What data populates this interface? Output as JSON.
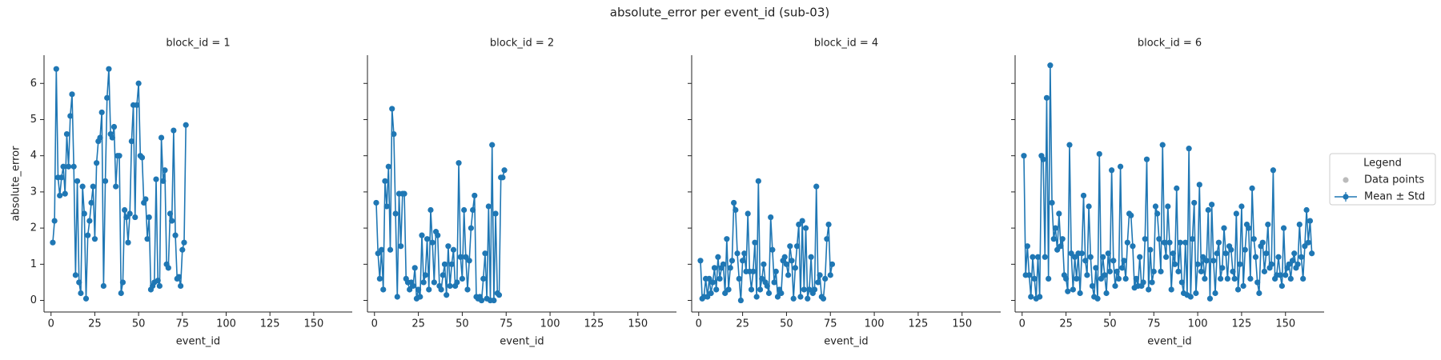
{
  "title": "absolute_error per event_id (sub-03)",
  "legend": {
    "title": "Legend",
    "entries": [
      {
        "name": "Data points",
        "color": "#bbbbbb"
      },
      {
        "name": "Mean ± Std",
        "color": "#1f77b4"
      }
    ]
  },
  "chart_data": [
    {
      "type": "line",
      "title": "block_id = 1",
      "xlabel": "event_id",
      "ylabel": "absolute_error",
      "xlim": [
        -4,
        172
      ],
      "ylim": [
        -0.32,
        6.78
      ],
      "xticks": [
        0,
        25,
        50,
        75,
        100,
        125,
        150
      ],
      "yticks": [
        0,
        1,
        2,
        3,
        4,
        5,
        6
      ],
      "x": [
        1,
        2,
        3,
        4,
        5,
        6,
        7,
        8,
        9,
        10,
        11,
        12,
        13,
        14,
        15,
        16,
        17,
        18,
        19,
        20,
        21,
        22,
        23,
        24,
        25,
        26,
        27,
        28,
        29,
        30,
        31,
        32,
        33,
        34,
        35,
        36,
        37,
        38,
        39,
        40,
        41,
        42,
        43,
        44,
        45,
        46,
        47,
        48,
        49,
        50,
        51,
        52,
        53,
        54,
        55,
        56,
        57,
        58,
        59,
        60,
        61,
        62,
        63,
        64,
        65,
        66,
        67,
        68,
        69,
        70,
        71,
        72,
        73,
        74,
        75,
        76,
        77
      ],
      "series": [
        {
          "color": "#1f77b4",
          "values": [
            1.6,
            2.2,
            6.4,
            3.4,
            2.9,
            3.4,
            3.7,
            2.95,
            4.6,
            3.7,
            5.1,
            5.7,
            3.7,
            0.7,
            3.3,
            0.5,
            0.2,
            3.15,
            2.4,
            0.05,
            1.8,
            2.2,
            2.7,
            3.15,
            1.7,
            3.8,
            4.4,
            4.5,
            5.2,
            0.4,
            3.3,
            5.6,
            6.4,
            4.6,
            4.5,
            4.8,
            3.15,
            4.0,
            4.0,
            0.2,
            0.5,
            2.5,
            2.3,
            1.6,
            2.4,
            4.4,
            5.4,
            2.3,
            5.4,
            6.0,
            4.0,
            3.95,
            2.7,
            2.8,
            1.7,
            2.3,
            0.3,
            0.4,
            0.5,
            3.35,
            0.55,
            0.4,
            4.5,
            3.3,
            3.6,
            1.0,
            0.9,
            2.4,
            2.2,
            4.7,
            1.8,
            0.6,
            0.65,
            0.4,
            1.4,
            1.6,
            4.85
          ]
        }
      ]
    },
    {
      "type": "line",
      "title": "block_id = 2",
      "xlabel": "event_id",
      "xlim": [
        -4,
        172
      ],
      "ylim": [
        -0.32,
        6.78
      ],
      "xticks": [
        0,
        25,
        50,
        75,
        100,
        125,
        150
      ],
      "yticks": [
        0,
        1,
        2,
        3,
        4,
        5,
        6
      ],
      "x": [
        1,
        2,
        3,
        4,
        5,
        6,
        7,
        8,
        9,
        10,
        11,
        12,
        13,
        14,
        15,
        16,
        17,
        18,
        19,
        20,
        21,
        22,
        23,
        24,
        25,
        26,
        27,
        28,
        29,
        30,
        31,
        32,
        33,
        34,
        35,
        36,
        37,
        38,
        39,
        40,
        41,
        42,
        43,
        44,
        45,
        46,
        47,
        48,
        49,
        50,
        51,
        52,
        53,
        54,
        55,
        56,
        57,
        58,
        59,
        60,
        61,
        62,
        63,
        64,
        65,
        66,
        67,
        68,
        69,
        70,
        71,
        72,
        73,
        74
      ],
      "series": [
        {
          "color": "#1f77b4",
          "values": [
            2.7,
            1.3,
            0.6,
            1.4,
            0.3,
            3.3,
            2.6,
            3.7,
            1.4,
            5.3,
            4.6,
            2.4,
            0.1,
            2.95,
            1.5,
            2.95,
            2.95,
            0.6,
            0.5,
            0.3,
            0.5,
            0.4,
            0.9,
            0.05,
            0.3,
            0.1,
            1.8,
            0.5,
            0.7,
            1.7,
            0.3,
            2.5,
            1.6,
            0.5,
            1.9,
            1.8,
            0.4,
            0.3,
            0.7,
            1.0,
            0.15,
            1.5,
            0.4,
            1.0,
            1.4,
            0.4,
            0.5,
            3.8,
            1.2,
            0.6,
            2.5,
            1.2,
            0.3,
            1.1,
            2.0,
            2.5,
            2.9,
            0.1,
            0.05,
            0.1,
            0.0,
            0.6,
            1.3,
            0.05,
            2.6,
            0.0,
            4.3,
            0.0,
            2.4,
            0.2,
            0.15,
            3.4,
            3.4,
            3.6
          ]
        }
      ]
    },
    {
      "type": "line",
      "title": "block_id = 4",
      "xlabel": "event_id",
      "xlim": [
        -4,
        172
      ],
      "ylim": [
        -0.32,
        6.78
      ],
      "xticks": [
        0,
        25,
        50,
        75,
        100,
        125,
        150
      ],
      "yticks": [
        0,
        1,
        2,
        3,
        4,
        5,
        6
      ],
      "x": [
        1,
        2,
        3,
        4,
        5,
        6,
        7,
        8,
        9,
        10,
        11,
        12,
        13,
        14,
        15,
        16,
        17,
        18,
        19,
        20,
        21,
        22,
        23,
        24,
        25,
        26,
        27,
        28,
        29,
        30,
        31,
        32,
        33,
        34,
        35,
        36,
        37,
        38,
        39,
        40,
        41,
        42,
        43,
        44,
        45,
        46,
        47,
        48,
        49,
        50,
        51,
        52,
        53,
        54,
        55,
        56,
        57,
        58,
        59,
        60,
        61,
        62,
        63,
        64,
        65,
        66,
        67,
        68,
        69,
        70,
        71,
        72,
        73,
        74,
        75,
        76
      ],
      "series": [
        {
          "color": "#1f77b4",
          "values": [
            1.1,
            0.05,
            0.1,
            0.6,
            0.1,
            0.6,
            0.2,
            0.5,
            0.9,
            0.3,
            1.2,
            0.6,
            0.9,
            1.0,
            0.2,
            1.7,
            0.3,
            0.9,
            1.1,
            2.7,
            2.5,
            1.3,
            0.6,
            0.0,
            1.1,
            1.3,
            0.8,
            2.4,
            0.8,
            0.3,
            0.8,
            1.6,
            0.1,
            3.3,
            0.3,
            0.6,
            1.0,
            0.5,
            0.4,
            0.2,
            2.3,
            1.4,
            0.5,
            0.8,
            0.1,
            0.3,
            0.2,
            1.1,
            1.2,
            1.0,
            0.7,
            1.5,
            1.1,
            0.05,
            0.9,
            1.5,
            2.1,
            0.1,
            2.2,
            0.3,
            2.0,
            0.05,
            0.3,
            1.2,
            0.2,
            0.3,
            3.15,
            0.5,
            0.7,
            0.1,
            0.05,
            0.6,
            1.7,
            2.1,
            0.7,
            1.0
          ]
        }
      ]
    },
    {
      "type": "line",
      "title": "block_id = 6",
      "xlabel": "event_id",
      "xlim": [
        -4,
        172
      ],
      "ylim": [
        -0.32,
        6.78
      ],
      "xticks": [
        0,
        25,
        50,
        75,
        100,
        125,
        150
      ],
      "yticks": [
        0,
        1,
        2,
        3,
        4,
        5,
        6
      ],
      "x": [
        1,
        2,
        3,
        4,
        5,
        6,
        7,
        8,
        9,
        10,
        11,
        12,
        13,
        14,
        15,
        16,
        17,
        18,
        19,
        20,
        21,
        22,
        23,
        24,
        25,
        26,
        27,
        28,
        29,
        30,
        31,
        32,
        33,
        34,
        35,
        36,
        37,
        38,
        39,
        40,
        41,
        42,
        43,
        44,
        45,
        46,
        47,
        48,
        49,
        50,
        51,
        52,
        53,
        54,
        55,
        56,
        57,
        58,
        59,
        60,
        61,
        62,
        63,
        64,
        65,
        66,
        67,
        68,
        69,
        70,
        71,
        72,
        73,
        74,
        75,
        76,
        77,
        78,
        79,
        80,
        81,
        82,
        83,
        84,
        85,
        86,
        87,
        88,
        89,
        90,
        91,
        92,
        93,
        94,
        95,
        96,
        97,
        98,
        99,
        100,
        101,
        102,
        103,
        104,
        105,
        106,
        107,
        108,
        109,
        110,
        111,
        112,
        113,
        114,
        115,
        116,
        117,
        118,
        119,
        120,
        121,
        122,
        123,
        124,
        125,
        126,
        127,
        128,
        129,
        130,
        131,
        132,
        133,
        134,
        135,
        136,
        137,
        138,
        139,
        140,
        141,
        142,
        143,
        144,
        145,
        146,
        147,
        148,
        149,
        150,
        151,
        152,
        153,
        154,
        155,
        156,
        157,
        158,
        159,
        160,
        161,
        162,
        163,
        164,
        165
      ],
      "series": [
        {
          "color": "#1f77b4",
          "values": [
            4.0,
            0.7,
            1.5,
            0.7,
            0.1,
            1.2,
            0.6,
            0.05,
            1.2,
            0.1,
            4.0,
            3.9,
            1.2,
            5.6,
            0.6,
            6.5,
            2.7,
            1.7,
            2.0,
            1.4,
            2.4,
            1.5,
            1.7,
            0.7,
            0.6,
            0.25,
            4.3,
            1.3,
            0.3,
            1.2,
            0.6,
            1.3,
            0.2,
            1.3,
            2.9,
            1.1,
            0.7,
            2.6,
            1.2,
            0.4,
            0.1,
            0.9,
            0.05,
            4.05,
            0.6,
            1.2,
            0.7,
            0.2,
            1.3,
            0.8,
            3.6,
            1.1,
            0.4,
            0.8,
            0.6,
            3.7,
            0.9,
            1.1,
            0.6,
            1.6,
            2.4,
            2.35,
            1.5,
            0.35,
            0.6,
            0.4,
            1.2,
            0.4,
            0.5,
            1.7,
            3.9,
            0.3,
            1.4,
            0.5,
            0.8,
            2.6,
            2.4,
            1.7,
            0.8,
            4.3,
            1.6,
            1.2,
            2.6,
            1.6,
            0.3,
            1.3,
            1.0,
            3.1,
            0.8,
            1.6,
            0.5,
            0.2,
            1.6,
            0.15,
            4.2,
            0.1,
            1.7,
            2.7,
            0.2,
            1.0,
            3.2,
            0.8,
            1.2,
            0.6,
            1.1,
            2.5,
            0.05,
            2.65,
            1.1,
            0.2,
            1.3,
            1.6,
            0.6,
            0.9,
            2.0,
            1.3,
            0.6,
            1.5,
            1.4,
            0.8,
            0.6,
            2.4,
            0.3,
            1.0,
            2.6,
            0.4,
            1.4,
            2.1,
            2.0,
            0.6,
            3.1,
            1.7,
            1.2,
            0.5,
            0.2,
            1.5,
            1.6,
            0.8,
            1.3,
            2.1,
            0.9,
            1.0,
            3.6,
            0.6,
            0.7,
            1.2,
            0.7,
            0.4,
            2.0,
            0.7,
            0.9,
            1.0,
            0.6,
            1.1,
            1.3,
            0.9,
            1.0,
            2.1,
            1.2,
            0.6,
            1.5,
            2.5,
            1.6,
            2.2,
            1.3
          ]
        }
      ]
    }
  ]
}
